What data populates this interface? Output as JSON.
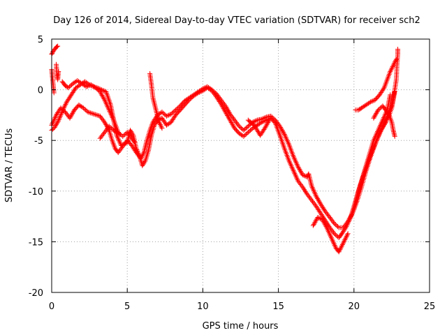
{
  "chart_data": {
    "type": "scatter",
    "title": "Day 126 of 2014, Sidereal Day-to-day VTEC variation (SDTVAR) for receiver sch2",
    "xlabel": "GPS time / hours",
    "ylabel": "SDTVAR / TECUs",
    "xlim": [
      0,
      25
    ],
    "ylim": [
      -20,
      5
    ],
    "xticks": [
      0,
      5,
      10,
      15,
      20,
      25
    ],
    "yticks": [
      5,
      0,
      -5,
      -10,
      -15,
      -20
    ],
    "xtick_labels": [
      "0",
      "5",
      "10",
      "15",
      "20",
      "25"
    ],
    "ytick_labels": [
      "5",
      "0",
      "-5",
      "-10",
      "-15",
      "-20"
    ],
    "grid": true,
    "marker": "+",
    "series_color": "#ff0000",
    "series": [
      {
        "name": "track-a",
        "points": [
          [
            0.0,
            3.5
          ],
          [
            0.1,
            3.8
          ],
          [
            0.2,
            4.0
          ],
          [
            0.3,
            4.2
          ],
          [
            0.4,
            4.3
          ]
        ]
      },
      {
        "name": "track-b",
        "points": [
          [
            0.0,
            2.0
          ],
          [
            0.05,
            1.2
          ],
          [
            0.1,
            0.5
          ],
          [
            0.15,
            -0.3
          ]
        ]
      },
      {
        "name": "track-c",
        "points": [
          [
            0.3,
            2.5
          ],
          [
            0.35,
            1.5
          ],
          [
            0.4,
            1.0
          ],
          [
            0.45,
            1.8
          ]
        ]
      },
      {
        "name": "track-d",
        "points": [
          [
            0.0,
            -4.0
          ],
          [
            0.2,
            -3.7
          ],
          [
            0.4,
            -3.2
          ],
          [
            0.6,
            -2.5
          ],
          [
            0.8,
            -1.8
          ],
          [
            1.0,
            -1.2
          ],
          [
            1.3,
            -0.5
          ],
          [
            1.6,
            0.2
          ],
          [
            2.0,
            0.6
          ],
          [
            2.2,
            0.8
          ],
          [
            2.6,
            0.4
          ],
          [
            3.0,
            0.2
          ],
          [
            3.3,
            0.0
          ],
          [
            3.6,
            -0.2
          ],
          [
            3.9,
            -1.5
          ],
          [
            4.1,
            -3.0
          ],
          [
            4.3,
            -4.5
          ],
          [
            4.6,
            -5.5
          ],
          [
            5.0,
            -5.2
          ],
          [
            5.2,
            -4.0
          ],
          [
            5.4,
            -4.5
          ],
          [
            5.6,
            -5.8
          ],
          [
            5.8,
            -6.5
          ],
          [
            6.0,
            -7.5
          ],
          [
            6.2,
            -7.0
          ],
          [
            6.4,
            -6.0
          ],
          [
            6.6,
            -4.5
          ],
          [
            6.8,
            -3.5
          ],
          [
            7.0,
            -3.0
          ],
          [
            7.3,
            -2.8
          ],
          [
            7.6,
            -3.5
          ],
          [
            7.9,
            -3.2
          ],
          [
            8.2,
            -2.5
          ],
          [
            8.5,
            -2.0
          ],
          [
            8.8,
            -1.5
          ],
          [
            9.1,
            -1.0
          ],
          [
            9.4,
            -0.6
          ],
          [
            9.7,
            -0.3
          ],
          [
            10.0,
            -0.1
          ],
          [
            10.3,
            0.2
          ],
          [
            10.6,
            -0.1
          ],
          [
            10.9,
            -0.7
          ],
          [
            11.2,
            -1.4
          ],
          [
            11.5,
            -2.2
          ],
          [
            11.8,
            -3.0
          ],
          [
            12.1,
            -3.8
          ],
          [
            12.4,
            -4.3
          ],
          [
            12.7,
            -4.6
          ],
          [
            13.0,
            -4.2
          ],
          [
            13.3,
            -3.8
          ],
          [
            13.6,
            -3.5
          ],
          [
            13.9,
            -3.2
          ],
          [
            14.2,
            -3.0
          ],
          [
            14.5,
            -2.8
          ],
          [
            14.8,
            -3.3
          ],
          [
            15.1,
            -4.5
          ],
          [
            15.4,
            -5.8
          ],
          [
            15.7,
            -7.0
          ],
          [
            16.0,
            -8.0
          ],
          [
            16.3,
            -9.0
          ],
          [
            16.6,
            -9.6
          ],
          [
            16.9,
            -10.3
          ],
          [
            17.2,
            -10.9
          ],
          [
            17.5,
            -11.5
          ],
          [
            17.8,
            -12.2
          ],
          [
            18.1,
            -12.9
          ],
          [
            18.4,
            -13.6
          ],
          [
            18.7,
            -14.2
          ],
          [
            19.0,
            -14.6
          ],
          [
            19.2,
            -14.2
          ],
          [
            19.5,
            -13.5
          ],
          [
            19.8,
            -12.5
          ],
          [
            20.1,
            -11.0
          ],
          [
            20.4,
            -9.5
          ],
          [
            20.7,
            -8.0
          ],
          [
            21.0,
            -6.5
          ],
          [
            21.3,
            -5.0
          ],
          [
            21.6,
            -4.0
          ],
          [
            21.9,
            -3.0
          ],
          [
            22.2,
            -2.0
          ],
          [
            22.4,
            -0.5
          ]
        ]
      },
      {
        "name": "track-e",
        "points": [
          [
            0.0,
            -3.5
          ],
          [
            0.3,
            -2.5
          ],
          [
            0.6,
            -1.8
          ],
          [
            0.9,
            -2.2
          ],
          [
            1.2,
            -2.8
          ],
          [
            1.5,
            -2.0
          ],
          [
            1.8,
            -1.5
          ],
          [
            2.1,
            -1.8
          ],
          [
            2.4,
            -2.2
          ],
          [
            2.8,
            -2.4
          ],
          [
            3.2,
            -2.6
          ],
          [
            3.5,
            -3.2
          ],
          [
            3.8,
            -4.0
          ],
          [
            4.0,
            -5.0
          ],
          [
            4.2,
            -5.8
          ],
          [
            4.4,
            -6.2
          ],
          [
            4.7,
            -5.6
          ],
          [
            5.0,
            -5.0
          ],
          [
            5.3,
            -5.5
          ],
          [
            5.6,
            -6.2
          ],
          [
            5.9,
            -6.8
          ],
          [
            6.1,
            -6.2
          ],
          [
            6.3,
            -5.0
          ],
          [
            6.5,
            -4.0
          ],
          [
            6.7,
            -3.2
          ],
          [
            7.0,
            -2.5
          ],
          [
            7.3,
            -2.2
          ],
          [
            7.6,
            -2.6
          ],
          [
            7.9,
            -2.4
          ],
          [
            8.2,
            -2.0
          ],
          [
            8.5,
            -1.6
          ],
          [
            8.8,
            -1.1
          ],
          [
            9.1,
            -0.8
          ],
          [
            9.4,
            -0.5
          ],
          [
            9.7,
            -0.2
          ],
          [
            10.0,
            0.1
          ],
          [
            10.3,
            0.3
          ],
          [
            10.6,
            0.0
          ],
          [
            10.9,
            -0.4
          ],
          [
            11.2,
            -1.0
          ],
          [
            11.5,
            -1.6
          ],
          [
            11.8,
            -2.4
          ],
          [
            12.1,
            -3.0
          ],
          [
            12.4,
            -3.6
          ],
          [
            12.7,
            -4.0
          ],
          [
            13.0,
            -3.6
          ],
          [
            13.3,
            -3.2
          ],
          [
            13.6,
            -3.0
          ],
          [
            13.9,
            -2.9
          ],
          [
            14.2,
            -2.7
          ],
          [
            14.5,
            -2.6
          ],
          [
            14.8,
            -3.0
          ],
          [
            15.1,
            -3.6
          ],
          [
            15.4,
            -4.4
          ],
          [
            15.7,
            -5.4
          ],
          [
            16.0,
            -6.6
          ],
          [
            16.3,
            -7.6
          ],
          [
            16.6,
            -8.4
          ],
          [
            16.9,
            -8.6
          ],
          [
            17.0,
            -8.3
          ],
          [
            17.2,
            -9.5
          ],
          [
            17.5,
            -10.5
          ],
          [
            17.8,
            -11.3
          ],
          [
            18.1,
            -12.0
          ],
          [
            18.4,
            -12.6
          ],
          [
            18.7,
            -13.2
          ],
          [
            19.0,
            -13.6
          ],
          [
            19.3,
            -13.6
          ],
          [
            19.6,
            -13.0
          ],
          [
            19.9,
            -12.2
          ],
          [
            20.2,
            -11.0
          ],
          [
            20.5,
            -9.6
          ],
          [
            20.8,
            -8.0
          ],
          [
            21.1,
            -6.6
          ],
          [
            21.4,
            -5.4
          ],
          [
            21.7,
            -4.2
          ],
          [
            22.0,
            -3.4
          ],
          [
            22.3,
            -2.6
          ],
          [
            22.5,
            -1.8
          ],
          [
            22.6,
            -1.0
          ],
          [
            22.7,
            -0.2
          ]
        ]
      },
      {
        "name": "track-f",
        "points": [
          [
            0.7,
            0.8
          ],
          [
            0.9,
            0.4
          ],
          [
            1.1,
            0.2
          ],
          [
            1.4,
            0.6
          ],
          [
            1.7,
            0.9
          ],
          [
            2.0,
            0.6
          ],
          [
            2.3,
            0.3
          ],
          [
            2.6,
            0.5
          ],
          [
            2.9,
            0.2
          ],
          [
            3.2,
            -0.2
          ],
          [
            3.5,
            -1.0
          ],
          [
            3.8,
            -2.0
          ],
          [
            4.1,
            -3.0
          ],
          [
            4.4,
            -4.2
          ],
          [
            4.7,
            -4.6
          ],
          [
            5.0,
            -4.2
          ],
          [
            5.3,
            -4.8
          ],
          [
            5.5,
            -5.2
          ]
        ]
      },
      {
        "name": "track-g",
        "points": [
          [
            6.5,
            1.6
          ],
          [
            6.6,
            0.5
          ],
          [
            6.7,
            -0.8
          ],
          [
            6.9,
            -2.0
          ],
          [
            7.1,
            -3.2
          ],
          [
            7.3,
            -3.8
          ]
        ]
      },
      {
        "name": "track-h",
        "points": [
          [
            3.2,
            -4.8
          ],
          [
            3.5,
            -4.2
          ],
          [
            3.8,
            -3.6
          ],
          [
            4.1,
            -4.0
          ],
          [
            4.5,
            -4.4
          ]
        ]
      },
      {
        "name": "track-i",
        "points": [
          [
            13.0,
            -3.0
          ],
          [
            13.4,
            -3.5
          ],
          [
            13.8,
            -4.5
          ],
          [
            14.1,
            -3.8
          ],
          [
            14.4,
            -3.0
          ]
        ]
      },
      {
        "name": "track-j",
        "points": [
          [
            17.3,
            -13.4
          ],
          [
            17.6,
            -12.6
          ],
          [
            17.9,
            -12.8
          ],
          [
            18.2,
            -13.6
          ],
          [
            18.5,
            -14.6
          ],
          [
            18.8,
            -15.6
          ],
          [
            19.0,
            -16.0
          ],
          [
            19.2,
            -15.4
          ],
          [
            19.4,
            -14.8
          ],
          [
            19.6,
            -14.2
          ]
        ]
      },
      {
        "name": "track-k",
        "points": [
          [
            20.0,
            -11.8
          ],
          [
            20.3,
            -10.0
          ],
          [
            20.6,
            -8.6
          ],
          [
            20.9,
            -7.2
          ],
          [
            21.2,
            -6.0
          ],
          [
            21.5,
            -5.0
          ],
          [
            21.8,
            -4.0
          ],
          [
            22.1,
            -3.2
          ],
          [
            22.3,
            -2.2
          ],
          [
            22.5,
            -1.5
          ],
          [
            22.7,
            0.0
          ],
          [
            22.8,
            1.0
          ],
          [
            22.85,
            2.5
          ],
          [
            22.9,
            3.5
          ],
          [
            22.9,
            4.0
          ]
        ]
      },
      {
        "name": "track-l",
        "points": [
          [
            20.1,
            -2.0
          ],
          [
            20.3,
            -2.0
          ],
          [
            20.5,
            -1.8
          ],
          [
            20.8,
            -1.5
          ],
          [
            21.1,
            -1.2
          ],
          [
            21.4,
            -1.0
          ],
          [
            21.7,
            -0.5
          ],
          [
            22.0,
            0.2
          ],
          [
            22.2,
            1.0
          ],
          [
            22.4,
            1.8
          ],
          [
            22.6,
            2.4
          ],
          [
            22.8,
            3.0
          ]
        ]
      },
      {
        "name": "track-m",
        "points": [
          [
            21.3,
            -2.8
          ],
          [
            21.6,
            -2.0
          ],
          [
            21.9,
            -1.6
          ],
          [
            22.1,
            -2.0
          ],
          [
            22.3,
            -2.4
          ],
          [
            22.5,
            -3.2
          ],
          [
            22.6,
            -4.0
          ],
          [
            22.7,
            -4.6
          ]
        ]
      }
    ]
  }
}
